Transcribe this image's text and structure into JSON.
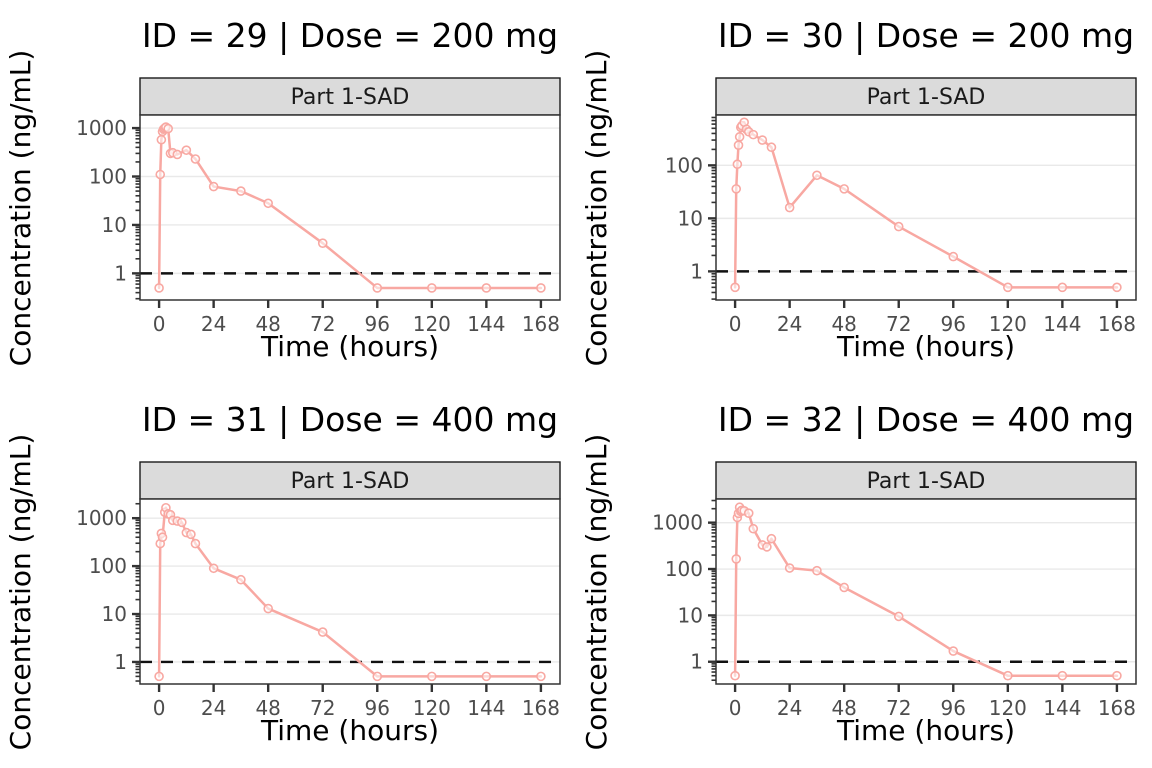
{
  "figure": {
    "xlabel": "Time (hours)",
    "ylabel": "Concentration (ng/mL)",
    "strip_label": "Part 1-SAD",
    "x_ticks": [
      0,
      24,
      48,
      72,
      96,
      120,
      144,
      168
    ],
    "xlim": [
      -8.4,
      176.4
    ],
    "yscale": "log10",
    "lloq_value": 1,
    "colors": {
      "series_line": "#F8A8A2",
      "marker_fill": "#FFFFFF",
      "strip_bg": "#DBDBDB",
      "strip_border": "#1a1a1a",
      "panel_border": "#333333",
      "gridline": "#E9E9E9",
      "tick": "#333333",
      "tick_label": "#4d4d4d",
      "lloq_line": "#111111",
      "title": "#000000"
    }
  },
  "chart_data": [
    {
      "type": "line",
      "title": "ID = 29 | Dose = 200 mg",
      "subject_id": 29,
      "dose": "200 mg",
      "facet": "Part 1-SAD",
      "xlabel": "Time (hours)",
      "ylabel": "Concentration (ng/mL)",
      "yscale": "log10",
      "lloq": 1,
      "y_ticks": [
        1,
        10,
        100,
        1000
      ],
      "ylog_domain": [
        -0.55,
        3.27
      ],
      "x": [
        0,
        0.5,
        1,
        1.5,
        2,
        2.5,
        3,
        4,
        5,
        6,
        8,
        12,
        16,
        24,
        36,
        48,
        72,
        96,
        120,
        144,
        168
      ],
      "y": [
        0.5,
        110,
        575,
        850,
        950,
        1000,
        1050,
        975,
        300,
        310,
        285,
        350,
        230,
        62,
        50,
        28,
        4.2,
        0.5,
        0.5,
        0.5,
        0.5
      ]
    },
    {
      "type": "line",
      "title": "ID = 30 | Dose = 200 mg",
      "subject_id": 30,
      "dose": "200 mg",
      "facet": "Part 1-SAD",
      "xlabel": "Time (hours)",
      "ylabel": "Concentration (ng/mL)",
      "yscale": "log10",
      "lloq": 1,
      "y_ticks": [
        1,
        10,
        100
      ],
      "ylog_domain": [
        -0.54,
        2.95
      ],
      "x": [
        0,
        0.5,
        1,
        1.5,
        2,
        2.5,
        3,
        4,
        5,
        6,
        8,
        12,
        16,
        24,
        36,
        48,
        72,
        96,
        120,
        144,
        168
      ],
      "y": [
        0.5,
        36,
        105,
        240,
        345,
        520,
        560,
        650,
        480,
        430,
        380,
        300,
        220,
        16,
        65,
        36,
        7,
        1.9,
        0.5,
        0.5,
        0.5
      ]
    },
    {
      "type": "line",
      "title": "ID = 31 | Dose = 400 mg",
      "subject_id": 31,
      "dose": "400 mg",
      "facet": "Part 1-SAD",
      "xlabel": "Time (hours)",
      "ylabel": "Concentration (ng/mL)",
      "yscale": "log10",
      "lloq": 1,
      "y_ticks": [
        1,
        10,
        100,
        1000
      ],
      "ylog_domain": [
        -0.46,
        3.4
      ],
      "x": [
        0,
        0.5,
        1,
        1.5,
        2.5,
        3,
        4,
        5,
        6,
        8,
        10,
        12,
        14,
        16,
        24,
        36,
        48,
        72,
        96,
        120,
        144,
        168
      ],
      "y": [
        0.5,
        295,
        480,
        400,
        1330,
        1650,
        1230,
        1180,
        900,
        870,
        820,
        500,
        460,
        295,
        90,
        52,
        13,
        4.2,
        0.5,
        0.5,
        0.5,
        0.5
      ]
    },
    {
      "type": "line",
      "title": "ID = 32 | Dose = 400 mg",
      "subject_id": 32,
      "dose": "400 mg",
      "facet": "Part 1-SAD",
      "xlabel": "Time (hours)",
      "ylabel": "Concentration (ng/mL)",
      "yscale": "log10",
      "lloq": 1,
      "y_ticks": [
        1,
        10,
        100,
        1000
      ],
      "ylog_domain": [
        -0.48,
        3.51
      ],
      "x": [
        0,
        0.5,
        1,
        1.5,
        2,
        2.5,
        3,
        4,
        6,
        8,
        12,
        14,
        16,
        24,
        36,
        48,
        72,
        96,
        120,
        144,
        168
      ],
      "y": [
        0.5,
        165,
        1290,
        1590,
        2150,
        1750,
        1850,
        1800,
        1600,
        740,
        330,
        300,
        450,
        105,
        92,
        40,
        9.5,
        1.7,
        0.5,
        0.5,
        0.5
      ]
    }
  ]
}
